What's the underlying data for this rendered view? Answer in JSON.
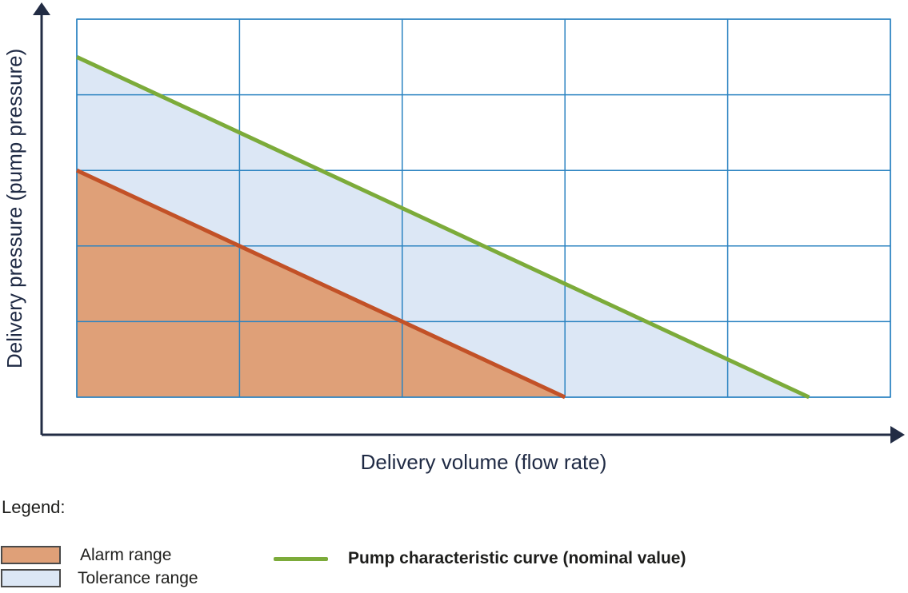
{
  "chart_data": {
    "type": "area",
    "title": "",
    "xlabel": "Delivery volume (flow rate)",
    "ylabel": "Delivery pressure (pump pressure)",
    "xlim": [
      0,
      5
    ],
    "ylim": [
      0,
      5
    ],
    "grid": true,
    "grid_color": "#2b83c1",
    "axis_color": "#222c44",
    "regions": [
      {
        "name": "Tolerance range",
        "color": "#dce7f5",
        "polygon": [
          [
            0,
            4.5
          ],
          [
            4.5,
            0
          ],
          [
            3,
            0
          ],
          [
            0,
            3
          ]
        ]
      },
      {
        "name": "Alarm range",
        "color": "#dfa078",
        "polygon": [
          [
            0,
            3
          ],
          [
            3,
            0
          ],
          [
            0,
            0
          ]
        ]
      }
    ],
    "series": [
      {
        "name": "Alarm limit line",
        "color": "#c25127",
        "width": 5,
        "points": [
          [
            0,
            3
          ],
          [
            3,
            0
          ]
        ]
      },
      {
        "name": "Pump characteristic curve (nominal value)",
        "color": "#7cab3a",
        "width": 5,
        "points": [
          [
            0,
            4.5
          ],
          [
            4.5,
            0
          ]
        ]
      }
    ]
  },
  "legend": {
    "title": "Legend:",
    "items": [
      {
        "label": "Alarm range",
        "swatch_color": "#dfa078",
        "type": "box"
      },
      {
        "label": "Tolerance range",
        "swatch_color": "#dce7f5",
        "type": "box"
      },
      {
        "label": "Pump characteristic curve (nominal value)",
        "swatch_color": "#7cab3a",
        "type": "line"
      }
    ]
  },
  "colors": {
    "grid_blue": "#2b83c1",
    "axis_navy": "#222c44",
    "axis_text_navy": "#1f2a44",
    "legend_text": "#1d1d1b",
    "alarm_fill": "#dfa078",
    "tolerance_fill": "#dce7f5",
    "alarm_line": "#c25127",
    "nominal_line": "#7cab3a"
  }
}
